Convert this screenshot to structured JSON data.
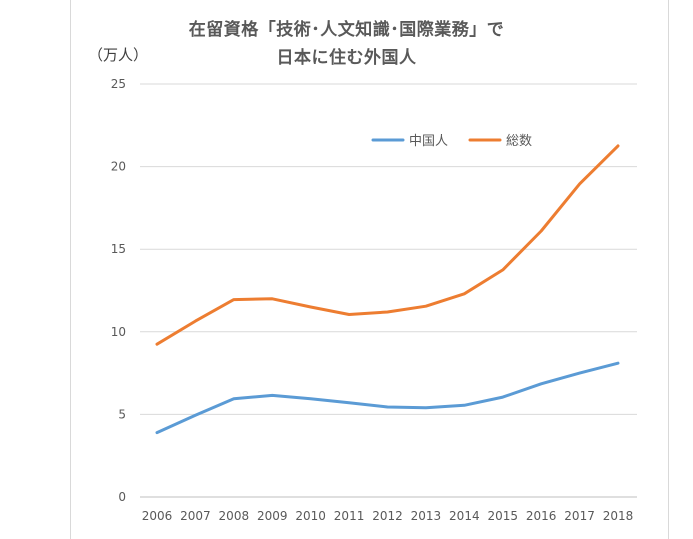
{
  "chart_data": {
    "type": "line",
    "title_line1": "在留資格「技術･人文知識･国際業務」で",
    "title_line2": "日本に住む外国人",
    "unit_label": "（万人）",
    "categories": [
      "2006",
      "2007",
      "2008",
      "2009",
      "2010",
      "2011",
      "2012",
      "2013",
      "2014",
      "2015",
      "2016",
      "2017",
      "2018"
    ],
    "ylim": [
      0,
      25
    ],
    "yticks": [
      0,
      5,
      10,
      15,
      20,
      25
    ],
    "grid": true,
    "legend_position": "top-right",
    "series": [
      {
        "name": "中国人",
        "color": "#5b9bd5",
        "values": [
          3.9,
          4.95,
          5.95,
          6.15,
          5.95,
          5.7,
          5.45,
          5.4,
          5.55,
          6.05,
          6.85,
          7.5,
          8.1
        ]
      },
      {
        "name": "総数",
        "color": "#ed7d31",
        "values": [
          9.25,
          10.65,
          11.95,
          12.0,
          11.5,
          11.05,
          11.2,
          11.55,
          12.3,
          13.75,
          16.1,
          18.95,
          21.25
        ]
      }
    ]
  }
}
